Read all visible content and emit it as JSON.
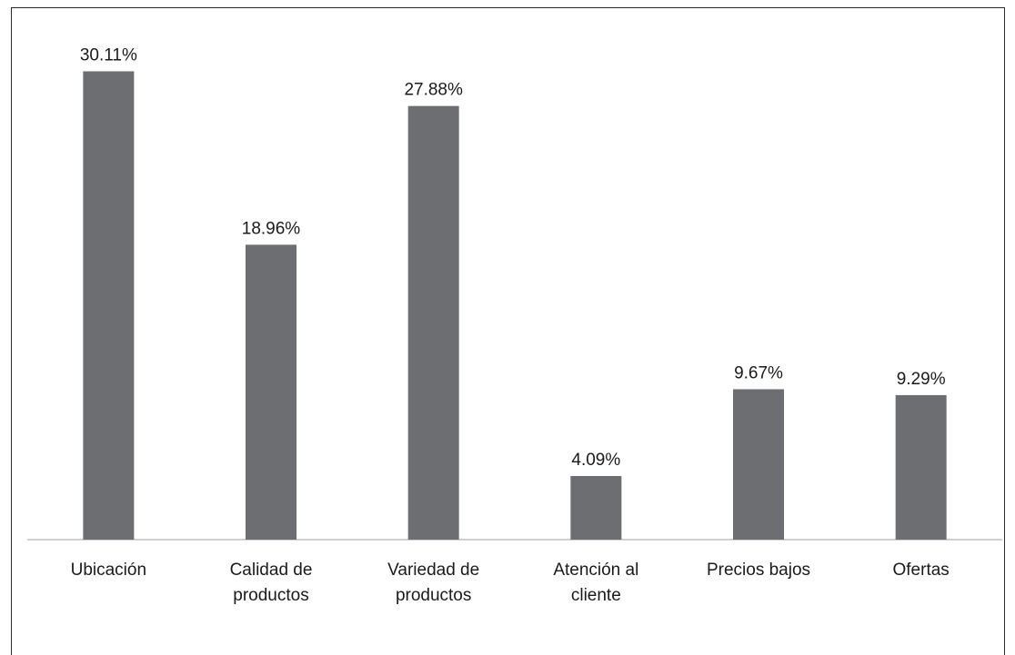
{
  "colors": {
    "bar": "#6d6e71",
    "axis": "#bfbfbf",
    "text": "#1a1a1a",
    "border": "#2b2b2b"
  },
  "chart_data": {
    "type": "bar",
    "title": "",
    "xlabel": "",
    "ylabel": "",
    "categories": [
      [
        "Ubicación"
      ],
      [
        "Calidad de",
        "productos"
      ],
      [
        "Variedad de",
        "productos"
      ],
      [
        "Atención al",
        "cliente"
      ],
      [
        "Precios bajos"
      ],
      [
        "Ofertas"
      ]
    ],
    "values": [
      30.11,
      18.96,
      27.88,
      4.09,
      9.67,
      9.29
    ],
    "data_labels": [
      "30.11%",
      "18.96%",
      "27.88%",
      "4.09%",
      "9.67%",
      "9.29%"
    ],
    "unit": "%",
    "ylim": [
      0,
      33
    ],
    "grid": false,
    "legend": "none"
  }
}
